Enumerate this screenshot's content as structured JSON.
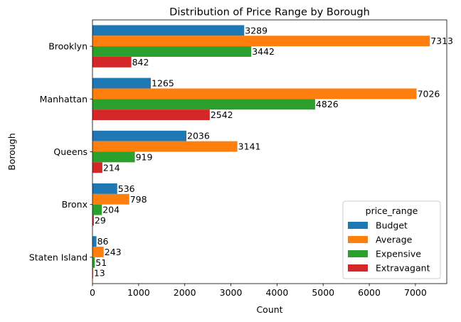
{
  "chart_data": {
    "type": "bar",
    "orientation": "horizontal",
    "title": "Distribution of Price Range by Borough",
    "xlabel": "Count",
    "ylabel": "Borough",
    "categories": [
      "Brooklyn",
      "Manhattan",
      "Queens",
      "Bronx",
      "Staten Island"
    ],
    "series": [
      {
        "name": "Budget",
        "color": "#1f77b4",
        "values": [
          3289,
          1265,
          2036,
          536,
          86
        ]
      },
      {
        "name": "Average",
        "color": "#ff7f0e",
        "values": [
          7313,
          7026,
          3141,
          798,
          243
        ]
      },
      {
        "name": "Expensive",
        "color": "#2ca02c",
        "values": [
          3442,
          4826,
          919,
          204,
          51
        ]
      },
      {
        "name": "Extravagant",
        "color": "#d62728",
        "values": [
          842,
          2542,
          214,
          29,
          13
        ]
      }
    ],
    "xlim": [
      0,
      7680
    ],
    "xticks": [
      0,
      1000,
      2000,
      3000,
      4000,
      5000,
      6000,
      7000
    ],
    "grid": false,
    "legend": {
      "title": "price_range",
      "position": "lower-right"
    }
  }
}
